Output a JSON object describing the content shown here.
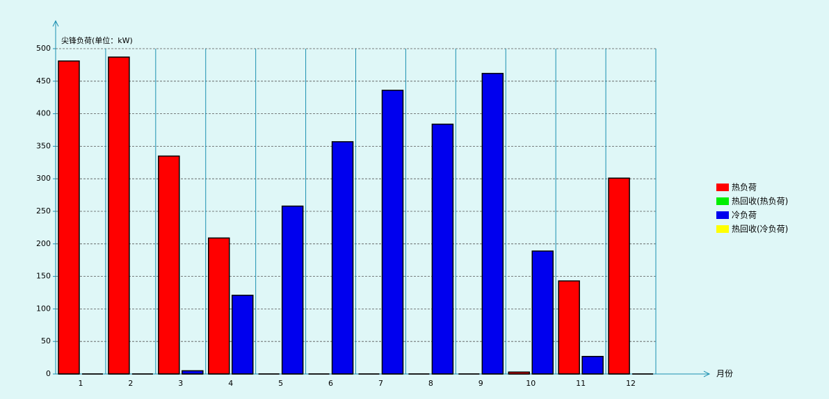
{
  "chart_data": {
    "type": "bar",
    "y_label": "尖锋负荷(单位：kW)",
    "x_label": "月份",
    "categories": [
      "1",
      "2",
      "3",
      "4",
      "5",
      "6",
      "7",
      "8",
      "9",
      "10",
      "11",
      "12"
    ],
    "series": [
      {
        "name": "热负荷",
        "color": "#ff0000",
        "values": [
          481,
          487,
          335,
          209,
          0,
          0,
          0,
          0,
          0,
          3,
          143,
          301
        ]
      },
      {
        "name": "热回收(热负荷)",
        "color": "#00ee00",
        "values": [
          0,
          0,
          0,
          0,
          0,
          0,
          0,
          0,
          0,
          0,
          0,
          0
        ]
      },
      {
        "name": "冷负荷",
        "color": "#0000ee",
        "values": [
          0,
          0,
          5,
          121,
          258,
          357,
          436,
          384,
          462,
          189,
          27,
          0
        ]
      },
      {
        "name": "热回收(冷负荷)",
        "color": "#ffff00",
        "values": [
          0,
          0,
          0,
          0,
          0,
          0,
          0,
          0,
          0,
          0,
          0,
          0
        ]
      }
    ],
    "ylim": [
      0,
      500
    ],
    "yticks": [
      0,
      50,
      100,
      150,
      200,
      250,
      300,
      350,
      400,
      450,
      500
    ],
    "grid": true
  }
}
